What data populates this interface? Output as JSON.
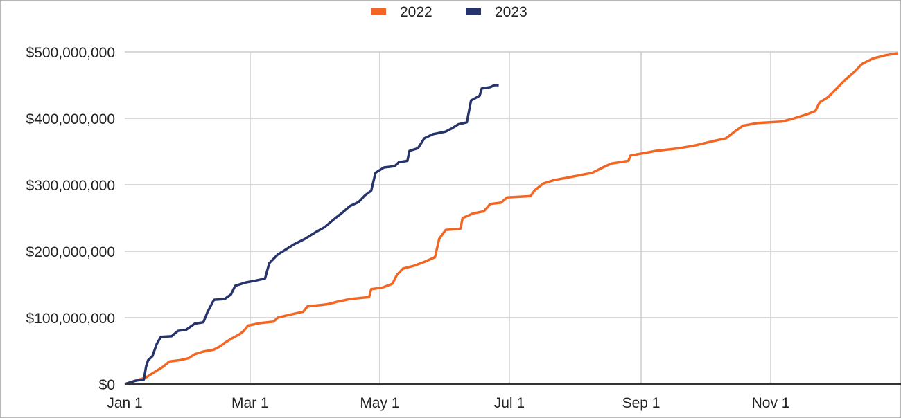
{
  "chart_data": {
    "type": "line",
    "title": "",
    "xlabel": "",
    "ylabel": "",
    "x_tick_labels": [
      "Jan 1",
      "Mar 1",
      "May 1",
      "Jul 1",
      "Sep 1",
      "Nov 1"
    ],
    "x_range": [
      "Jan 1",
      "Dec 31"
    ],
    "y_tick_labels": [
      "$0",
      "$100,000,000",
      "$200,000,000",
      "$300,000,000",
      "$400,000,000",
      "$500,000,000"
    ],
    "ylim": [
      0,
      500000000
    ],
    "grid": true,
    "legend_position": "top",
    "series": [
      {
        "name": "2022",
        "color": "#f26522",
        "points": [
          [
            "Jan 1",
            0
          ],
          [
            "Jan 11",
            10000000
          ],
          [
            "Jan 15",
            18000000
          ],
          [
            "Jan 19",
            26000000
          ],
          [
            "Jan 22",
            34000000
          ],
          [
            "Jan 27",
            36000000
          ],
          [
            "Jan 31",
            39000000
          ],
          [
            "Feb 3",
            45000000
          ],
          [
            "Feb 7",
            49000000
          ],
          [
            "Feb 12",
            52000000
          ],
          [
            "Feb 15",
            57000000
          ],
          [
            "Feb 17",
            62000000
          ],
          [
            "Feb 20",
            68000000
          ],
          [
            "Feb 24",
            75000000
          ],
          [
            "Feb 26",
            80000000
          ],
          [
            "Feb 28",
            88000000
          ],
          [
            "Mar 6",
            92000000
          ],
          [
            "Mar 12",
            94000000
          ],
          [
            "Mar 14",
            100000000
          ],
          [
            "Mar 19",
            104000000
          ],
          [
            "Mar 26",
            109000000
          ],
          [
            "Mar 28",
            117000000
          ],
          [
            "Apr 6",
            120000000
          ],
          [
            "Apr 11",
            124000000
          ],
          [
            "Apr 17",
            128000000
          ],
          [
            "Apr 26",
            131000000
          ],
          [
            "Apr 27",
            143000000
          ],
          [
            "May 2",
            145000000
          ],
          [
            "May 7",
            151000000
          ],
          [
            "May 9",
            164000000
          ],
          [
            "May 12",
            174000000
          ],
          [
            "May 17",
            178000000
          ],
          [
            "May 22",
            184000000
          ],
          [
            "May 27",
            191000000
          ],
          [
            "May 29",
            219000000
          ],
          [
            "Jun 1",
            232000000
          ],
          [
            "Jun 8",
            234000000
          ],
          [
            "Jun 9",
            250000000
          ],
          [
            "Jun 14",
            257000000
          ],
          [
            "Jun 19",
            260000000
          ],
          [
            "Jun 22",
            271000000
          ],
          [
            "Jun 27",
            273000000
          ],
          [
            "Jun 30",
            281000000
          ],
          [
            "Jul 11",
            283000000
          ],
          [
            "Jul 13",
            292000000
          ],
          [
            "Jul 17",
            302000000
          ],
          [
            "Jul 22",
            307000000
          ],
          [
            "Aug 1",
            313000000
          ],
          [
            "Aug 9",
            318000000
          ],
          [
            "Aug 14",
            326000000
          ],
          [
            "Aug 18",
            332000000
          ],
          [
            "Aug 26",
            336000000
          ],
          [
            "Aug 27",
            344000000
          ],
          [
            "Sep 8",
            351000000
          ],
          [
            "Sep 19",
            355000000
          ],
          [
            "Sep 26",
            359000000
          ],
          [
            "Oct 4",
            365000000
          ],
          [
            "Oct 11",
            370000000
          ],
          [
            "Oct 15",
            380000000
          ],
          [
            "Oct 19",
            389000000
          ],
          [
            "Oct 26",
            393000000
          ],
          [
            "Nov 6",
            395000000
          ],
          [
            "Nov 11",
            399000000
          ],
          [
            "Nov 18",
            406000000
          ],
          [
            "Nov 22",
            411000000
          ],
          [
            "Nov 24",
            424000000
          ],
          [
            "Nov 28",
            432000000
          ],
          [
            "Dec 2",
            445000000
          ],
          [
            "Dec 6",
            458000000
          ],
          [
            "Dec 10",
            469000000
          ],
          [
            "Dec 14",
            482000000
          ],
          [
            "Dec 19",
            490000000
          ],
          [
            "Dec 25",
            495000000
          ],
          [
            "Dec 31",
            498000000
          ]
        ]
      },
      {
        "name": "2023",
        "color": "#27346b",
        "points": [
          [
            "Jan 1",
            0
          ],
          [
            "Jan 6",
            5000000
          ],
          [
            "Jan 10",
            7000000
          ],
          [
            "Jan 11",
            26000000
          ],
          [
            "Jan 12",
            36000000
          ],
          [
            "Jan 14",
            42000000
          ],
          [
            "Jan 16",
            60000000
          ],
          [
            "Jan 18",
            71000000
          ],
          [
            "Jan 23",
            72000000
          ],
          [
            "Jan 26",
            80000000
          ],
          [
            "Jan 30",
            82000000
          ],
          [
            "Feb 3",
            91000000
          ],
          [
            "Feb 7",
            93000000
          ],
          [
            "Feb 9",
            109000000
          ],
          [
            "Feb 12",
            127000000
          ],
          [
            "Feb 17",
            128000000
          ],
          [
            "Feb 20",
            135000000
          ],
          [
            "Feb 22",
            148000000
          ],
          [
            "Feb 27",
            153000000
          ],
          [
            "Mar 4",
            156000000
          ],
          [
            "Mar 8",
            159000000
          ],
          [
            "Mar 10",
            182000000
          ],
          [
            "Mar 14",
            195000000
          ],
          [
            "Mar 18",
            203000000
          ],
          [
            "Mar 22",
            211000000
          ],
          [
            "Mar 27",
            219000000
          ],
          [
            "Apr 1",
            229000000
          ],
          [
            "Apr 5",
            236000000
          ],
          [
            "Apr 9",
            247000000
          ],
          [
            "Apr 13",
            257000000
          ],
          [
            "Apr 17",
            268000000
          ],
          [
            "Apr 21",
            274000000
          ],
          [
            "Apr 24",
            284000000
          ],
          [
            "Apr 27",
            291000000
          ],
          [
            "Apr 29",
            318000000
          ],
          [
            "May 3",
            326000000
          ],
          [
            "May 8",
            328000000
          ],
          [
            "May 10",
            334000000
          ],
          [
            "May 14",
            336000000
          ],
          [
            "May 15",
            351000000
          ],
          [
            "May 19",
            355000000
          ],
          [
            "May 22",
            370000000
          ],
          [
            "May 26",
            376000000
          ],
          [
            "Jun 1",
            380000000
          ],
          [
            "Jun 4",
            385000000
          ],
          [
            "Jun 7",
            391000000
          ],
          [
            "Jun 11",
            394000000
          ],
          [
            "Jun 13",
            427000000
          ],
          [
            "Jun 17",
            434000000
          ],
          [
            "Jun 18",
            445000000
          ],
          [
            "Jun 22",
            447000000
          ],
          [
            "Jun 24",
            450000000
          ],
          [
            "Jun 26",
            450000000
          ]
        ]
      }
    ]
  }
}
